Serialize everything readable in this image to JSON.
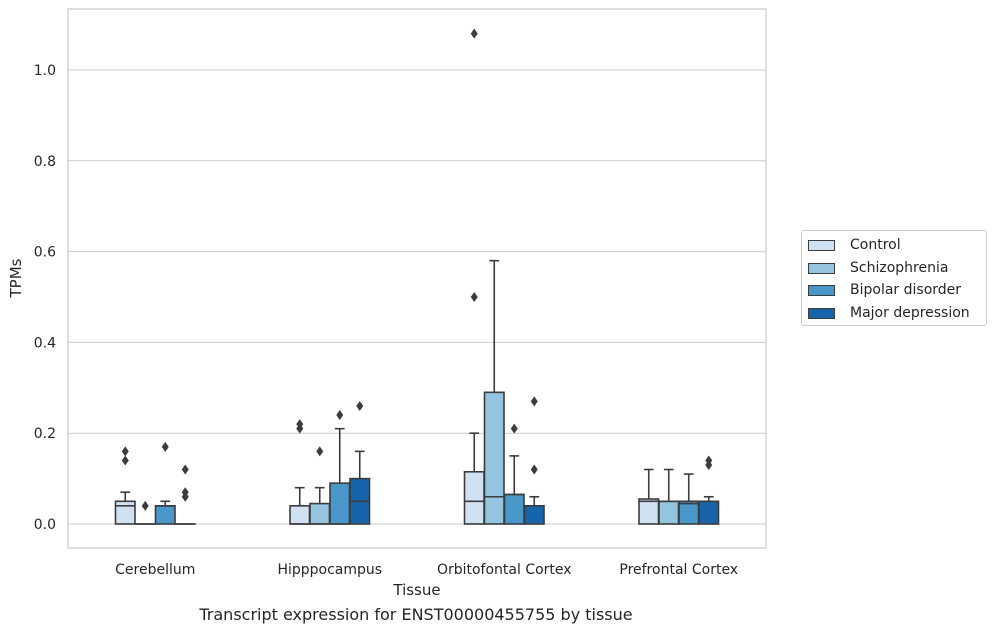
{
  "caption": "Transcript expression for ENST00000455755 by tissue",
  "chart_data": {
    "type": "box",
    "xlabel": "Tissue",
    "ylabel": "TPMs",
    "ylim": [
      -0.05,
      1.14
    ],
    "yticks": [
      0.0,
      0.2,
      0.4,
      0.6,
      0.8,
      1.0
    ],
    "ytick_labels": [
      "0.0",
      "0.2",
      "0.4",
      "0.6",
      "0.8",
      "1.0"
    ],
    "grid": "horizontal",
    "legend_position": "right",
    "categories": [
      "Cerebellum",
      "Hipppocampus",
      "Orbitofontal Cortex",
      "Prefrontal Cortex"
    ],
    "series": [
      {
        "name": "Control",
        "color": "#d0e1f2",
        "boxes": [
          {
            "q1": 0.0,
            "median": 0.04,
            "q3": 0.05,
            "whisker_low": 0.0,
            "whisker_high": 0.07,
            "outliers": [
              0.14,
              0.16
            ]
          },
          {
            "q1": 0.0,
            "median": 0.0,
            "q3": 0.04,
            "whisker_low": 0.0,
            "whisker_high": 0.08,
            "outliers": [
              0.21,
              0.22
            ]
          },
          {
            "q1": 0.0,
            "median": 0.05,
            "q3": 0.115,
            "whisker_low": 0.0,
            "whisker_high": 0.2,
            "outliers": [
              0.5,
              1.08
            ]
          },
          {
            "q1": 0.0,
            "median": 0.05,
            "q3": 0.055,
            "whisker_low": 0.0,
            "whisker_high": 0.12,
            "outliers": []
          }
        ]
      },
      {
        "name": "Schizophrenia",
        "color": "#94c4df",
        "boxes": [
          {
            "q1": 0.0,
            "median": 0.0,
            "q3": 0.0,
            "whisker_low": 0.0,
            "whisker_high": 0.0,
            "outliers": [
              0.04
            ]
          },
          {
            "q1": 0.0,
            "median": 0.0,
            "q3": 0.045,
            "whisker_low": 0.0,
            "whisker_high": 0.08,
            "outliers": [
              0.16
            ]
          },
          {
            "q1": 0.0,
            "median": 0.06,
            "q3": 0.29,
            "whisker_low": 0.0,
            "whisker_high": 0.58,
            "outliers": []
          },
          {
            "q1": 0.0,
            "median": 0.05,
            "q3": 0.05,
            "whisker_low": 0.0,
            "whisker_high": 0.12,
            "outliers": []
          }
        ]
      },
      {
        "name": "Bipolar disorder",
        "color": "#4a98c9",
        "boxes": [
          {
            "q1": 0.0,
            "median": 0.04,
            "q3": 0.04,
            "whisker_low": 0.0,
            "whisker_high": 0.05,
            "outliers": [
              0.17
            ]
          },
          {
            "q1": 0.0,
            "median": 0.0,
            "q3": 0.09,
            "whisker_low": 0.0,
            "whisker_high": 0.21,
            "outliers": [
              0.24
            ]
          },
          {
            "q1": 0.0,
            "median": 0.065,
            "q3": 0.065,
            "whisker_low": 0.0,
            "whisker_high": 0.15,
            "outliers": [
              0.21
            ]
          },
          {
            "q1": 0.0,
            "median": 0.045,
            "q3": 0.05,
            "whisker_low": 0.0,
            "whisker_high": 0.11,
            "outliers": []
          }
        ]
      },
      {
        "name": "Major depression",
        "color": "#1764ab",
        "boxes": [
          {
            "q1": 0.0,
            "median": 0.0,
            "q3": 0.0,
            "whisker_low": 0.0,
            "whisker_high": 0.0,
            "outliers": [
              0.06,
              0.07,
              0.12
            ]
          },
          {
            "q1": 0.0,
            "median": 0.05,
            "q3": 0.1,
            "whisker_low": 0.0,
            "whisker_high": 0.16,
            "outliers": [
              0.26
            ]
          },
          {
            "q1": 0.0,
            "median": 0.04,
            "q3": 0.04,
            "whisker_low": 0.0,
            "whisker_high": 0.06,
            "outliers": [
              0.12,
              0.27
            ]
          },
          {
            "q1": 0.0,
            "median": 0.05,
            "q3": 0.05,
            "whisker_low": 0.0,
            "whisker_high": 0.06,
            "outliers": [
              0.13,
              0.14
            ]
          }
        ]
      }
    ]
  }
}
